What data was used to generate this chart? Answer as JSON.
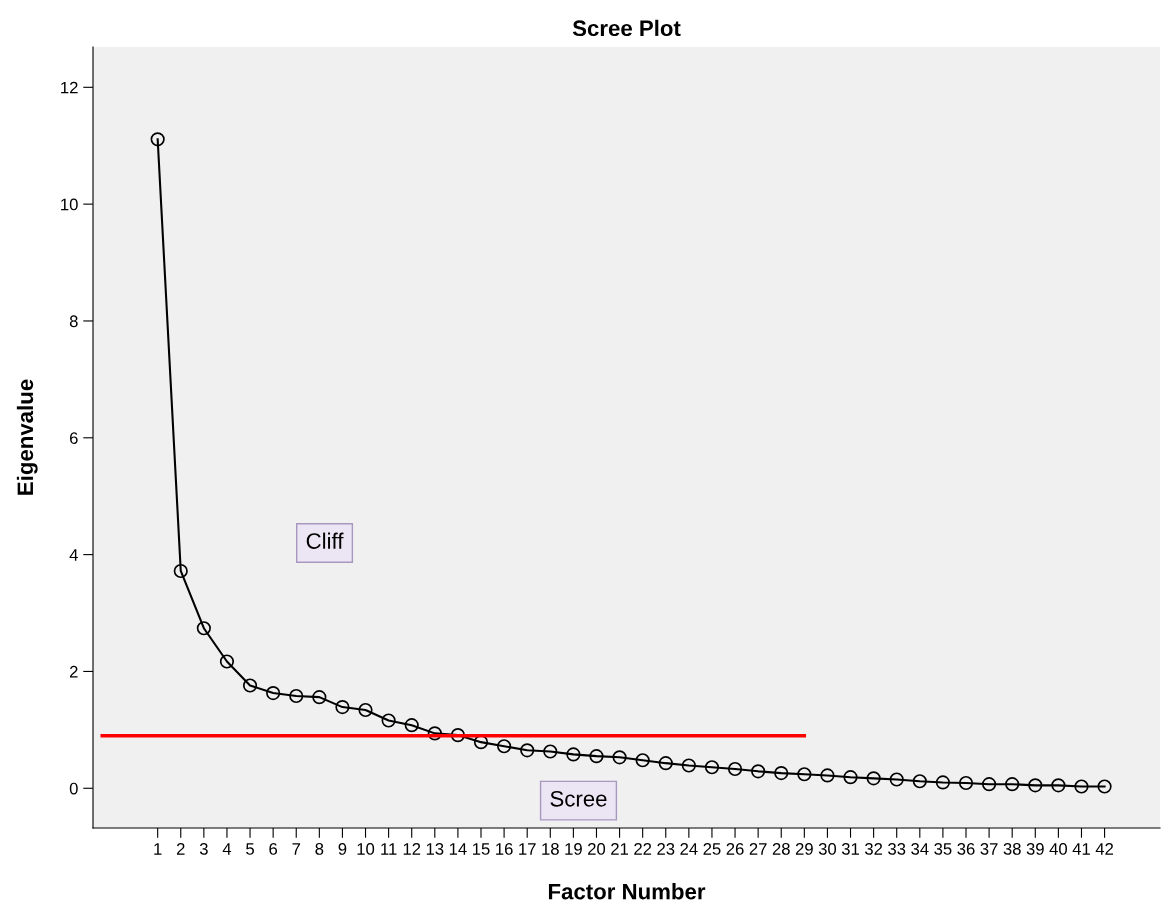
{
  "chart_data": {
    "type": "line",
    "title": "Scree Plot",
    "xlabel": "Factor Number",
    "ylabel": "Eigenvalue",
    "x": [
      1,
      2,
      3,
      4,
      5,
      6,
      7,
      8,
      9,
      10,
      11,
      12,
      13,
      14,
      15,
      16,
      17,
      18,
      19,
      20,
      21,
      22,
      23,
      24,
      25,
      26,
      27,
      28,
      29,
      30,
      31,
      32,
      33,
      34,
      35,
      36,
      37,
      38,
      39,
      40,
      41,
      42
    ],
    "series": [
      {
        "color": "#000000",
        "marker": "circle",
        "values": [
          11.11,
          3.72,
          2.74,
          2.17,
          1.76,
          1.63,
          1.58,
          1.56,
          1.39,
          1.34,
          1.16,
          1.08,
          0.94,
          0.91,
          0.79,
          0.72,
          0.65,
          0.63,
          0.58,
          0.55,
          0.53,
          0.48,
          0.43,
          0.39,
          0.36,
          0.33,
          0.29,
          0.26,
          0.24,
          0.22,
          0.19,
          0.17,
          0.15,
          0.12,
          0.1,
          0.09,
          0.07,
          0.07,
          0.05,
          0.05,
          0.03,
          0.03
        ]
      },
      {
        "color": "#ff0000",
        "marker": "none",
        "x": [
          -1.4,
          29
        ],
        "values": [
          0.9,
          0.9
        ]
      }
    ],
    "xlim": [
      -1.8,
      44.4
    ],
    "xticks": [
      1,
      2,
      3,
      4,
      5,
      6,
      7,
      8,
      9,
      10,
      11,
      12,
      13,
      14,
      15,
      16,
      17,
      18,
      19,
      20,
      21,
      22,
      23,
      24,
      25,
      26,
      27,
      28,
      29,
      30,
      31,
      32,
      33,
      34,
      35,
      36,
      37,
      38,
      39,
      40,
      41,
      42
    ],
    "ylim": [
      -0.68,
      12.69
    ],
    "yticks": [
      0,
      2,
      4,
      6,
      8,
      10,
      12
    ],
    "grid": false,
    "legend": false,
    "annotations": [
      "Cliff",
      "Scree"
    ]
  }
}
